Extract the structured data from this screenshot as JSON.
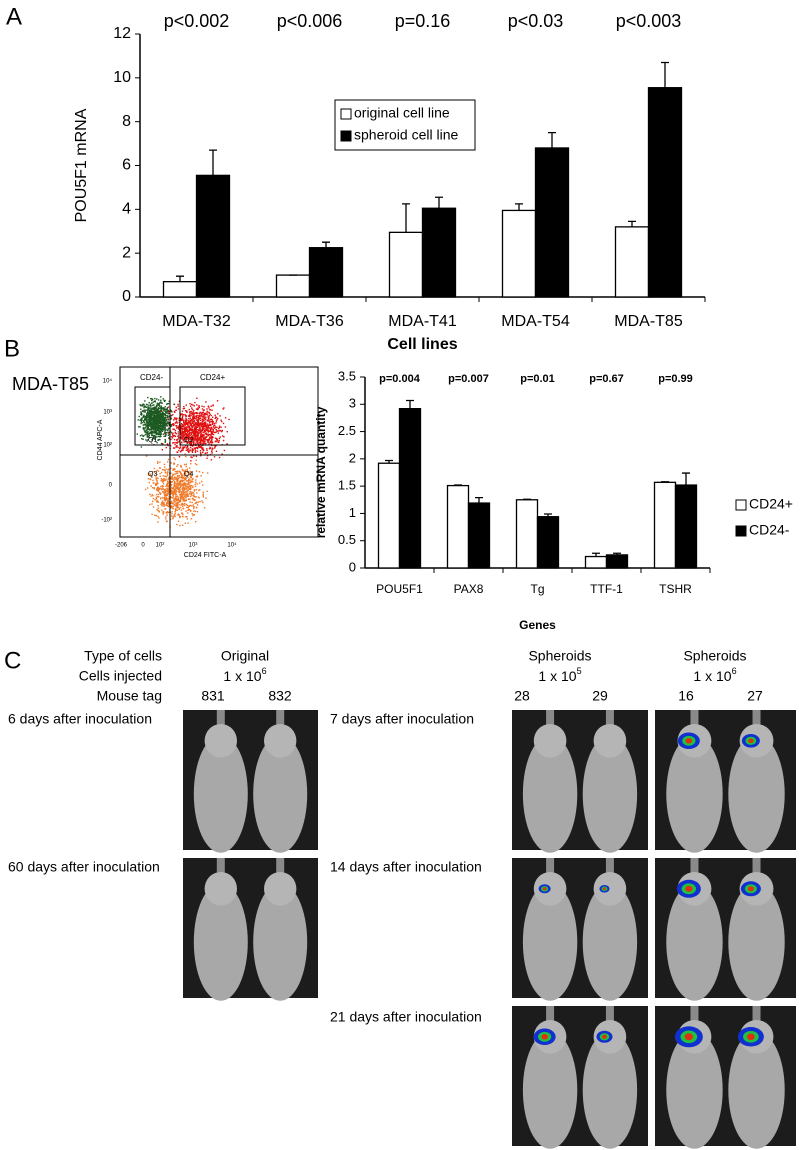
{
  "panel_labels": [
    "A",
    "B",
    "C"
  ],
  "chart_data": [
    {
      "type": "bar",
      "y_label": "POU5F1 mRNA",
      "x_label": "Cell lines",
      "categories": [
        "MDA-T32",
        "MDA-T36",
        "MDA-T41",
        "MDA-T54",
        "MDA-T85"
      ],
      "annotations": [
        "p<0.002",
        "p<0.006",
        "p=0.16",
        "p<0.03",
        "p<0.003"
      ],
      "series": [
        {
          "name": "original cell line",
          "color": "#ffffff",
          "values": [
            0.7,
            1.0,
            2.95,
            3.95,
            3.2
          ],
          "errors": [
            0.25,
            0,
            1.3,
            0.3,
            0.25
          ]
        },
        {
          "name": "spheroid cell line",
          "color": "#000000",
          "values": [
            5.55,
            2.25,
            4.05,
            6.8,
            9.55
          ],
          "errors": [
            1.15,
            0.25,
            0.5,
            0.7,
            1.15
          ]
        }
      ],
      "ylim": [
        0,
        12
      ],
      "yticks": [
        0,
        2,
        4,
        6,
        8,
        10,
        12
      ],
      "legend": "inside-top",
      "grid": false
    },
    {
      "type": "bar",
      "y_label": "relative mRNA quantity",
      "x_label": "Genes",
      "categories": [
        "POU5F1",
        "PAX8",
        "Tg",
        "TTF-1",
        "TSHR"
      ],
      "annotations": [
        "p=0.004",
        "p=0.007",
        "p=0.01",
        "p=0.67",
        "p=0.99"
      ],
      "series": [
        {
          "name": "CD24+",
          "color": "#ffffff",
          "values": [
            1.92,
            1.51,
            1.25,
            0.21,
            1.57
          ],
          "errors": [
            0.05,
            0.01,
            0.01,
            0.06,
            0.01
          ]
        },
        {
          "name": "CD24-",
          "color": "#000000",
          "values": [
            2.92,
            1.19,
            0.94,
            0.24,
            1.52
          ],
          "errors": [
            0.15,
            0.1,
            0.05,
            0.03,
            0.22
          ]
        }
      ],
      "ylim": [
        0,
        3.5
      ],
      "yticks": [
        0,
        0.5,
        1,
        1.5,
        2,
        2.5,
        3,
        3.5
      ],
      "legend": "outside-right",
      "grid": false
    }
  ],
  "flow_cytometry": {
    "title": "MDA-T85",
    "gates": [
      "CD24-",
      "CD24+"
    ],
    "quadrants": [
      "Q1",
      "Q2",
      "Q3",
      "Q4"
    ],
    "x_label": "CD24 FITC-A",
    "y_label": "CD44 APC-A",
    "x_ticks": [
      "-206",
      "0",
      "10²",
      "10³",
      "10⁴"
    ],
    "y_ticks": [
      "10⁴",
      "10³",
      "10²",
      "0",
      "-10²"
    ]
  },
  "imaging": {
    "row_headers": [
      "Type of cells",
      "Cells injected",
      "Mouse tag"
    ],
    "groups": [
      {
        "type": "Original",
        "cells": {
          "text": "1 x 10",
          "exp": "6"
        },
        "tags": [
          "831",
          "832"
        ]
      },
      {
        "type": "Spheroids",
        "cells": {
          "text": "1 x 10",
          "exp": "5"
        },
        "tags": [
          "28",
          "29"
        ]
      },
      {
        "type": "Spheroids",
        "cells": {
          "text": "1 x 10",
          "exp": "6"
        },
        "tags": [
          "16",
          "27"
        ]
      }
    ],
    "time_labels": [
      "6 days after inoculation",
      "60 days after inoculation",
      "7 days after inoculation",
      "14 days after inoculation",
      "21 days after inoculation"
    ]
  }
}
